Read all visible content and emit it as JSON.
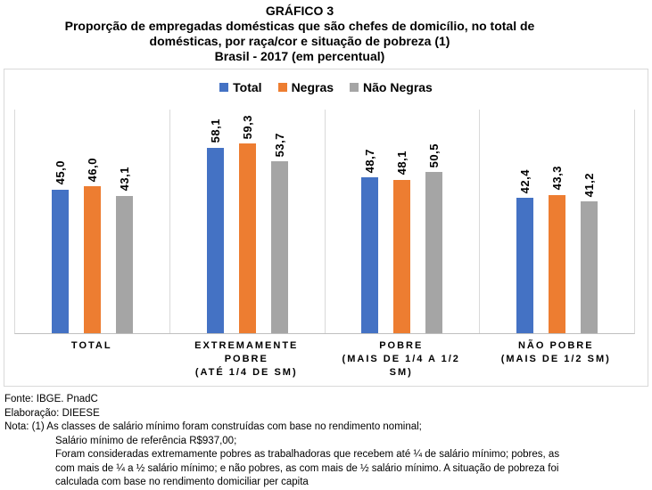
{
  "title": {
    "lines": [
      "GRÁFICO 3",
      "Proporção de empregadas domésticas que são chefes de domicílio, no total de",
      "domésticas, por raça/cor e situação de pobreza (1)",
      "Brasil - 2017 (em percentual)"
    ]
  },
  "chart_data": {
    "type": "bar",
    "title": "GRÁFICO 3 - Proporção de empregadas domésticas que são chefes de domicílio, no total de domésticas, por raça/cor e situação de pobreza (1) - Brasil - 2017 (em percentual)",
    "categories": [
      "TOTAL",
      "EXTREMAMENTE POBRE (ATÉ 1/4 DE SM)",
      "POBRE (MAIS DE 1/4 A 1/2 SM)",
      "NÃO POBRE (MAIS DE 1/2 SM)"
    ],
    "category_lines": [
      [
        "TOTAL"
      ],
      [
        "EXTREMAMENTE",
        "POBRE",
        "(ATÉ 1/4 DE SM)"
      ],
      [
        "POBRE",
        "(MAIS DE 1/4 A 1/2",
        "SM)"
      ],
      [
        "NÃO POBRE",
        "(MAIS DE 1/2 SM)"
      ]
    ],
    "series": [
      {
        "name": "Total",
        "color": "#4472C4",
        "values": [
          45.0,
          58.1,
          48.7,
          42.4
        ],
        "labels": [
          "45,0",
          "58,1",
          "48,7",
          "42,4"
        ]
      },
      {
        "name": "Negras",
        "color": "#ED7D31",
        "values": [
          46.0,
          59.3,
          48.1,
          43.3
        ],
        "labels": [
          "46,0",
          "59,3",
          "48,1",
          "43,3"
        ]
      },
      {
        "name": "Não Negras",
        "color": "#A5A5A5",
        "values": [
          43.1,
          53.7,
          50.5,
          41.2
        ],
        "labels": [
          "43,1",
          "53,7",
          "50,5",
          "41,2"
        ]
      }
    ],
    "ylim": [
      0,
      70
    ],
    "grid": false,
    "legend_position": "top",
    "value_labels_rotated": true,
    "ylabel": "",
    "xlabel": ""
  },
  "colors": {
    "frame_border": "#D9D9D9",
    "baseline": "#BFBFBF"
  },
  "footer": {
    "lines": [
      {
        "text": "Fonte: IBGE. PnadC",
        "indent": 0
      },
      {
        "text": "Elaboração: DIEESE",
        "indent": 0
      },
      {
        "text": "Nota: (1) As classes de salário mínimo foram construídas com base no rendimento nominal;",
        "indent": 0
      },
      {
        "text": "Salário mínimo de referência R$937,00;",
        "indent": 1
      },
      {
        "text": "Foram consideradas extremamente pobres as trabalhadoras que recebem até ¼ de salário mínimo; pobres, as",
        "indent": 1
      },
      {
        "text": "com mais de ¼ a ½ salário mínimo; e não pobres, as com mais de ½ salário mínimo. A situação de pobreza foi",
        "indent": 1
      },
      {
        "text": "calculada com base no rendimento domiciliar per capita",
        "indent": 1
      }
    ]
  }
}
